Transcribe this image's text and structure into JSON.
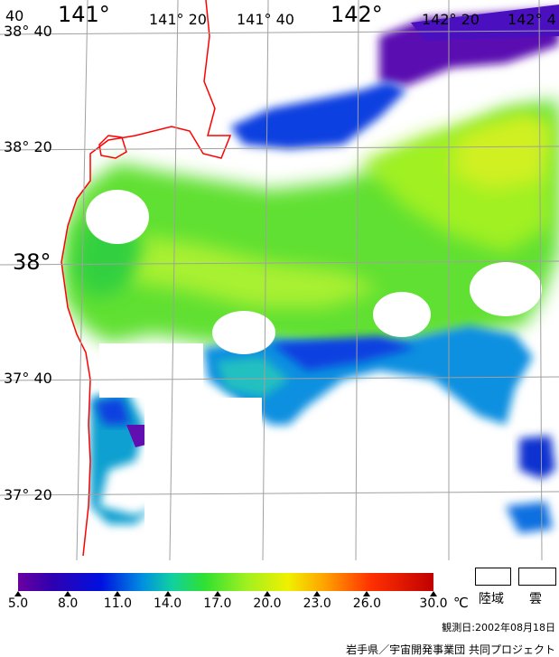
{
  "map": {
    "lon_labels": [
      {
        "text": "141°",
        "kind": "major",
        "pos": "left"
      },
      {
        "text": "141° 20",
        "kind": "minor"
      },
      {
        "text": "141° 40",
        "kind": "minor"
      },
      {
        "text": "142°",
        "kind": "major"
      },
      {
        "text": "142° 20",
        "kind": "minor"
      },
      {
        "text": "142° 4",
        "kind": "minor"
      }
    ],
    "corner_label": "40",
    "lat_labels": [
      {
        "text": "38° 40"
      },
      {
        "text": "38° 20"
      },
      {
        "text": "38°"
      },
      {
        "text": "37° 40"
      },
      {
        "text": "37° 20"
      }
    ],
    "colors": {
      "coastline": "#ff0000",
      "land": "#ffffff",
      "cloud": "#ffffff",
      "grid": "#a0a0a0"
    }
  },
  "colorbar": {
    "ticks": [
      "5.0",
      "8.0",
      "11.0",
      "14.0",
      "17.0",
      "20.0",
      "23.0",
      "26.0",
      "30.0"
    ],
    "unit": "℃",
    "range": [
      5.0,
      30.0
    ]
  },
  "legend": {
    "land": "陸域",
    "cloud": "雲"
  },
  "observation_date": "観測日:2002年08月18日",
  "credit": "岩手県／宇宙開発事業団 共同プロジェクト"
}
